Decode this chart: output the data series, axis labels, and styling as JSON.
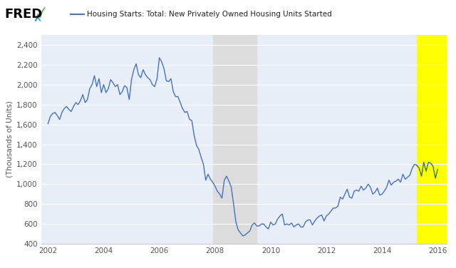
{
  "title": "Housing Starts: Total: New Privately Owned Housing Units Started",
  "ylabel": "(Thousands of Units)",
  "ylim": [
    400,
    2500
  ],
  "yticks": [
    400,
    600,
    800,
    1000,
    1200,
    1400,
    1600,
    1800,
    2000,
    2200,
    2400
  ],
  "xlim_start": 2001.75,
  "xlim_end": 2016.33,
  "recession_start": 2007.917,
  "recession_end": 2009.5,
  "highlight_start": 2015.25,
  "highlight_end": 2016.33,
  "line_color": "#4472C4",
  "highlight_color": "#3D7A2A",
  "highlight_bg": "#FFFF00",
  "recession_color": "#DCDCDC",
  "background_color": "#E8EEF7",
  "grid_color": "#FFFFFF",
  "tick_color": "#555555",
  "data": {
    "dates": [
      2002.0,
      2002.083,
      2002.167,
      2002.25,
      2002.333,
      2002.417,
      2002.5,
      2002.583,
      2002.667,
      2002.75,
      2002.833,
      2002.917,
      2003.0,
      2003.083,
      2003.167,
      2003.25,
      2003.333,
      2003.417,
      2003.5,
      2003.583,
      2003.667,
      2003.75,
      2003.833,
      2003.917,
      2004.0,
      2004.083,
      2004.167,
      2004.25,
      2004.333,
      2004.417,
      2004.5,
      2004.583,
      2004.667,
      2004.75,
      2004.833,
      2004.917,
      2005.0,
      2005.083,
      2005.167,
      2005.25,
      2005.333,
      2005.417,
      2005.5,
      2005.583,
      2005.667,
      2005.75,
      2005.833,
      2005.917,
      2006.0,
      2006.083,
      2006.167,
      2006.25,
      2006.333,
      2006.417,
      2006.5,
      2006.583,
      2006.667,
      2006.75,
      2006.833,
      2006.917,
      2007.0,
      2007.083,
      2007.167,
      2007.25,
      2007.333,
      2007.417,
      2007.5,
      2007.583,
      2007.667,
      2007.75,
      2007.833,
      2007.917,
      2008.0,
      2008.083,
      2008.167,
      2008.25,
      2008.333,
      2008.417,
      2008.5,
      2008.583,
      2008.667,
      2008.75,
      2008.833,
      2008.917,
      2009.0,
      2009.083,
      2009.167,
      2009.25,
      2009.333,
      2009.417,
      2009.5,
      2009.583,
      2009.667,
      2009.75,
      2009.833,
      2009.917,
      2010.0,
      2010.083,
      2010.167,
      2010.25,
      2010.333,
      2010.417,
      2010.5,
      2010.583,
      2010.667,
      2010.75,
      2010.833,
      2010.917,
      2011.0,
      2011.083,
      2011.167,
      2011.25,
      2011.333,
      2011.417,
      2011.5,
      2011.583,
      2011.667,
      2011.75,
      2011.833,
      2011.917,
      2012.0,
      2012.083,
      2012.167,
      2012.25,
      2012.333,
      2012.417,
      2012.5,
      2012.583,
      2012.667,
      2012.75,
      2012.833,
      2012.917,
      2013.0,
      2013.083,
      2013.167,
      2013.25,
      2013.333,
      2013.417,
      2013.5,
      2013.583,
      2013.667,
      2013.75,
      2013.833,
      2013.917,
      2014.0,
      2014.083,
      2014.167,
      2014.25,
      2014.333,
      2014.417,
      2014.5,
      2014.583,
      2014.667,
      2014.75,
      2014.833,
      2014.917,
      2015.0,
      2015.083,
      2015.167,
      2015.25,
      2015.333,
      2015.417,
      2015.5,
      2015.583,
      2015.667,
      2015.75,
      2015.833,
      2015.917,
      2016.0
    ],
    "values": [
      1608,
      1680,
      1710,
      1720,
      1690,
      1650,
      1720,
      1760,
      1780,
      1750,
      1730,
      1780,
      1820,
      1800,
      1840,
      1900,
      1820,
      1850,
      1960,
      2000,
      2090,
      1980,
      2060,
      1920,
      2000,
      1920,
      1960,
      2050,
      2020,
      1980,
      2000,
      1900,
      1930,
      1990,
      1970,
      1850,
      2050,
      2150,
      2210,
      2100,
      2070,
      2150,
      2100,
      2070,
      2050,
      2000,
      1980,
      2060,
      2270,
      2230,
      2160,
      2040,
      2030,
      2060,
      1930,
      1880,
      1880,
      1820,
      1760,
      1720,
      1730,
      1650,
      1640,
      1490,
      1390,
      1350,
      1270,
      1200,
      1040,
      1100,
      1050,
      1020,
      980,
      930,
      900,
      860,
      1040,
      1080,
      1030,
      970,
      800,
      620,
      540,
      510,
      480,
      490,
      510,
      530,
      590,
      610,
      580,
      580,
      600,
      600,
      570,
      550,
      620,
      590,
      600,
      650,
      680,
      700,
      590,
      600,
      590,
      610,
      570,
      590,
      600,
      570,
      570,
      620,
      640,
      640,
      590,
      630,
      660,
      680,
      690,
      630,
      680,
      700,
      730,
      760,
      760,
      780,
      870,
      850,
      900,
      950,
      870,
      860,
      930,
      940,
      930,
      980,
      940,
      960,
      1000,
      970,
      900,
      920,
      960,
      890,
      900,
      930,
      970,
      1040,
      990,
      1020,
      1030,
      1050,
      1020,
      1100,
      1050,
      1070,
      1090,
      1160,
      1200,
      1190,
      1160,
      1080,
      1220,
      1130,
      1220,
      1210,
      1180,
      1060,
      1150
    ]
  }
}
